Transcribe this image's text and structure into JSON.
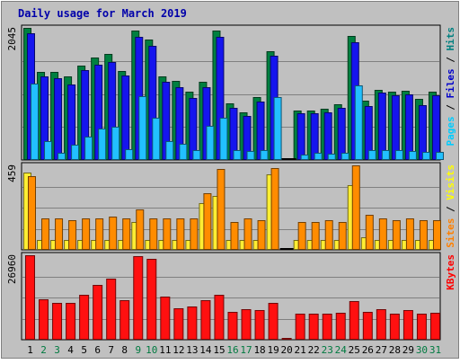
{
  "chart_data": {
    "type": "bar",
    "title": "Daily usage for March 2019",
    "categories": [
      "1",
      "2",
      "3",
      "4",
      "5",
      "6",
      "7",
      "8",
      "9",
      "10",
      "11",
      "12",
      "13",
      "14",
      "15",
      "16",
      "17",
      "18",
      "19",
      "20",
      "21",
      "22",
      "23",
      "24",
      "25",
      "26",
      "27",
      "28",
      "29",
      "30",
      "31"
    ],
    "weekend_days": [
      "2",
      "3",
      "9",
      "10",
      "16",
      "17",
      "23",
      "24",
      "30",
      "31"
    ],
    "panels": [
      {
        "id": "hits",
        "ymax_label": "2045",
        "ymax": 2045,
        "axis_label_parts": [
          {
            "text": "Pages",
            "color": "#00ccff"
          },
          {
            "text": " / ",
            "color": "#000000"
          },
          {
            "text": "Files",
            "color": "#0000cc"
          },
          {
            "text": " / ",
            "color": "#000000"
          },
          {
            "text": "Hits",
            "color": "#008080"
          }
        ],
        "series": [
          {
            "name": "Hits",
            "color": "#008040",
            "values": [
              2045,
              1360,
              1360,
              1300,
              1460,
              1580,
              1640,
              1380,
              2000,
              1860,
              1290,
              1230,
              1060,
              1210,
              2000,
              880,
              740,
              980,
              1680,
              0,
              760,
              760,
              790,
              860,
              1920,
              920,
              1080,
              1060,
              1070,
              940,
              1060
            ]
          },
          {
            "name": "Files",
            "color": "#1515ee",
            "values": [
              1960,
              1290,
              1270,
              1170,
              1390,
              1470,
              1520,
              1310,
              1910,
              1770,
              1210,
              1120,
              960,
              1120,
              1900,
              800,
              680,
              900,
              1610,
              0,
              720,
              720,
              740,
              810,
              1820,
              840,
              1040,
              1000,
              1010,
              850,
              1000
            ]
          },
          {
            "name": "Pages",
            "color": "#22c0ff",
            "values": [
              1180,
              290,
              110,
              230,
              360,
              480,
              520,
              160,
              990,
              650,
              290,
              250,
              150,
              530,
              660,
              150,
              140,
              150,
              980,
              0,
              90,
              110,
              100,
              110,
              1160,
              150,
              150,
              150,
              140,
              120,
              130
            ]
          }
        ]
      },
      {
        "id": "visits",
        "ymax_label": "459",
        "ymax": 459,
        "axis_label_parts": [
          {
            "text": "Sites",
            "color": "#ff8000"
          },
          {
            "text": " / ",
            "color": "#000000"
          },
          {
            "text": "Visits",
            "color": "#ffff00"
          }
        ],
        "series": [
          {
            "name": "Visits",
            "color": "#ffee33",
            "values": [
              420,
              55,
              55,
              55,
              55,
              55,
              55,
              55,
              150,
              55,
              55,
              55,
              55,
              255,
              295,
              55,
              55,
              55,
              410,
              0,
              55,
              55,
              55,
              55,
              350,
              70,
              55,
              55,
              55,
              55,
              55
            ]
          },
          {
            "name": "Sites",
            "color": "#ff8c00",
            "values": [
              400,
              170,
              170,
              160,
              170,
              170,
              180,
              170,
              220,
              170,
              170,
              170,
              170,
              310,
              440,
              150,
              170,
              160,
              445,
              0,
              150,
              150,
              160,
              150,
              459,
              190,
              170,
              160,
              170,
              160,
              160
            ]
          }
        ]
      },
      {
        "id": "kbytes",
        "ymax_label": "26960",
        "ymax": 26960,
        "axis_label_parts": [
          {
            "text": "KBytes",
            "color": "#ff0000"
          }
        ],
        "series": [
          {
            "name": "KBytes",
            "color": "#ff1010",
            "values": [
              26960,
              13000,
              11800,
              11800,
              14300,
              17600,
              19500,
              12500,
              26800,
              25900,
              13700,
              9900,
              10700,
              12500,
              14300,
              8900,
              9800,
              9400,
              11800,
              700,
              8200,
              8200,
              8300,
              8500,
              12300,
              8900,
              9700,
              8200,
              9600,
              8400,
              8700
            ]
          }
        ]
      }
    ]
  }
}
